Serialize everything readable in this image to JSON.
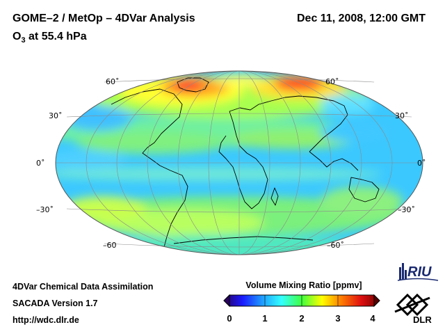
{
  "header": {
    "title": "GOME–2 / MetOp – 4DVar Analysis",
    "subtitle_species": "O",
    "subtitle_sub": "3",
    "subtitle_level": " at 55.4 hPa",
    "datetime": "Dec 11, 2008, 12:00 GMT"
  },
  "map": {
    "projection": "Hammer-Aitoff",
    "graticule": "30° spacing",
    "lat_labels_left": [
      "60˚",
      "30˚",
      "0˚",
      "–30˚",
      "–60"
    ],
    "lat_labels_right": [
      "60˚",
      "30˚",
      "0˚",
      "–30˚",
      "–60˚"
    ]
  },
  "footer": {
    "line1": "4DVar Chemical Data Assimilation",
    "line2": "SACADA Version 1.7",
    "line3": "http://wdc.dlr.de"
  },
  "colorbar": {
    "title": "Volume Mixing Ratio [ppmv]",
    "min": 0,
    "max": 4,
    "ticks": [
      "0",
      "1",
      "2",
      "3",
      "4"
    ],
    "colors": [
      "#2a0060",
      "#1a1aff",
      "#1fa0ff",
      "#33ffff",
      "#40ff40",
      "#ffff00",
      "#ff8000",
      "#e01010",
      "#700000"
    ]
  },
  "logos": {
    "riu": "RIU",
    "dlr": "DLR"
  }
}
